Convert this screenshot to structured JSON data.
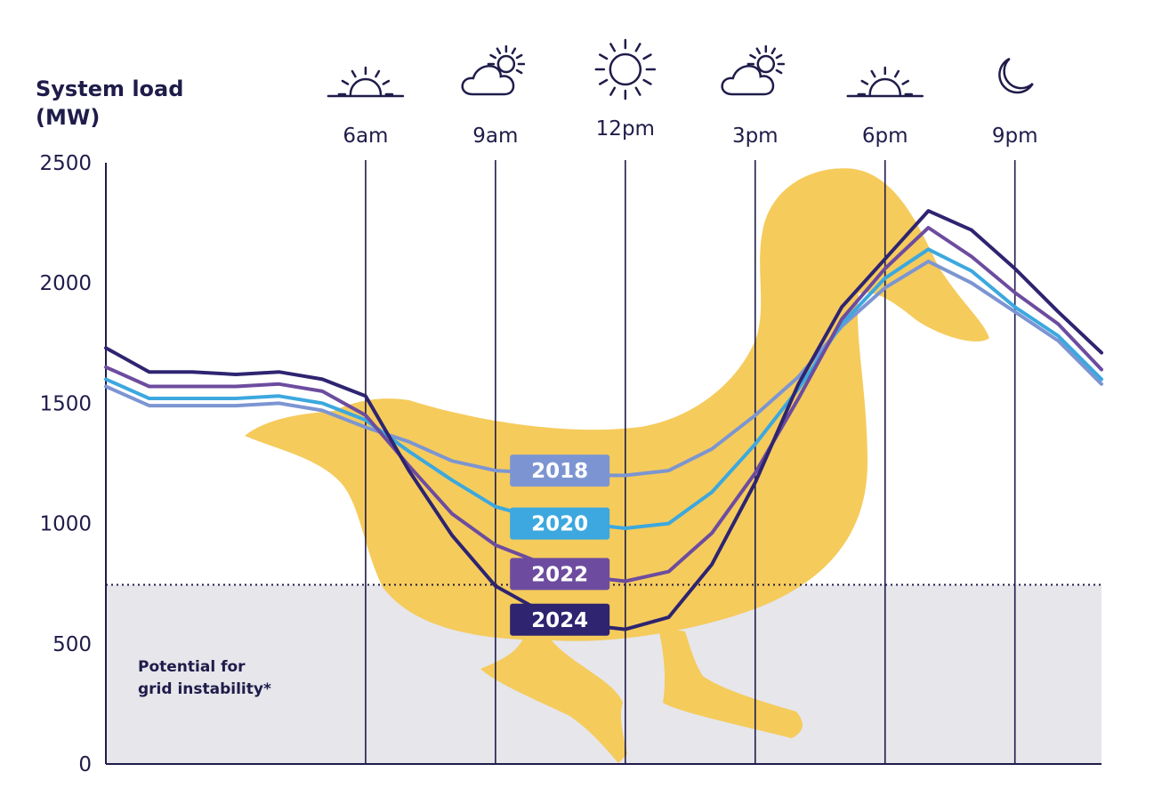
{
  "chart_data": {
    "type": "line",
    "ylabel": [
      "System load",
      "(MW)"
    ],
    "ylim": [
      0,
      2500
    ],
    "yticks": [
      0,
      500,
      1000,
      1500,
      2000,
      2500
    ],
    "xlim": [
      0,
      23
    ],
    "time_markers": [
      {
        "hour": 6,
        "label": "6am",
        "icon": "sunrise-icon"
      },
      {
        "hour": 9,
        "label": "9am",
        "icon": "partly-cloudy-icon"
      },
      {
        "hour": 12,
        "label": "12pm",
        "icon": "sun-icon"
      },
      {
        "hour": 15,
        "label": "3pm",
        "icon": "partly-cloudy-icon"
      },
      {
        "hour": 18,
        "label": "6pm",
        "icon": "sunset-icon"
      },
      {
        "hour": 21,
        "label": "9pm",
        "icon": "moon-icon"
      }
    ],
    "threshold": {
      "value": 745,
      "label": [
        "Potential for",
        "grid instability*"
      ]
    },
    "x": [
      0,
      1,
      2,
      3,
      4,
      5,
      6,
      7,
      8,
      9,
      10,
      11,
      12,
      13,
      14,
      15,
      16,
      17,
      18,
      19,
      20,
      21,
      22,
      23
    ],
    "series": [
      {
        "name": "2018",
        "color": "#7c95d2",
        "label_x": 11,
        "label_y": 1220,
        "values": [
          1570,
          1490,
          1490,
          1490,
          1500,
          1470,
          1400,
          1340,
          1260,
          1220,
          1210,
          1200,
          1200,
          1220,
          1310,
          1450,
          1610,
          1820,
          1980,
          2090,
          2000,
          1880,
          1760,
          1580
        ]
      },
      {
        "name": "2020",
        "color": "#3ca8df",
        "label_x": 11,
        "label_y": 1000,
        "values": [
          1600,
          1520,
          1520,
          1520,
          1530,
          1500,
          1430,
          1300,
          1180,
          1070,
          1020,
          1000,
          980,
          1000,
          1130,
          1330,
          1560,
          1830,
          2020,
          2140,
          2050,
          1900,
          1780,
          1600
        ]
      },
      {
        "name": "2022",
        "color": "#6d4c9f",
        "label_x": 11,
        "label_y": 790,
        "values": [
          1650,
          1570,
          1570,
          1570,
          1580,
          1550,
          1450,
          1240,
          1040,
          910,
          840,
          780,
          760,
          800,
          960,
          1210,
          1520,
          1850,
          2060,
          2230,
          2110,
          1960,
          1830,
          1640
        ]
      },
      {
        "name": "2024",
        "color": "#2e2470",
        "label_x": 11,
        "label_y": 600,
        "values": [
          1730,
          1630,
          1630,
          1620,
          1630,
          1600,
          1530,
          1220,
          950,
          740,
          640,
          580,
          560,
          610,
          830,
          1170,
          1580,
          1900,
          2100,
          2300,
          2220,
          2060,
          1880,
          1710
        ]
      }
    ],
    "colors": {
      "duck": "#f5cb5c",
      "grid_zone": "#e6e6eb",
      "axis": "#1f1c4a"
    }
  }
}
